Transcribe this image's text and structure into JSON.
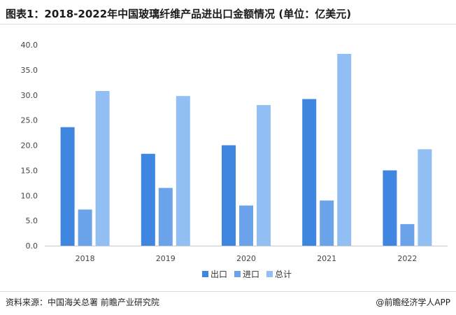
{
  "title": "图表1：2018-2022年中国玻璃纤维产品进出口金额情况 (单位：亿美元)",
  "source": "资料来源：中国海关总署 前瞻产业研究院",
  "credit": "@前瞻经济学人APP",
  "colors": {
    "出口": "#3f86e0",
    "进口": "#6aa3ea",
    "总计": "#92bff3"
  },
  "chart_data": {
    "type": "bar",
    "title": "图表1：2018-2022年中国玻璃纤维产品进出口金额情况 (单位：亿美元)",
    "categories": [
      "2018",
      "2019",
      "2020",
      "2021",
      "2022"
    ],
    "series": [
      {
        "name": "出口",
        "values": [
          23.6,
          18.3,
          20.0,
          29.2,
          15.0
        ]
      },
      {
        "name": "进口",
        "values": [
          7.2,
          11.5,
          8.0,
          9.0,
          4.3
        ]
      },
      {
        "name": "总计",
        "values": [
          30.8,
          29.8,
          28.0,
          38.2,
          19.2
        ]
      }
    ],
    "xlabel": "",
    "ylabel": "",
    "ylim": [
      0,
      40
    ],
    "yticks": [
      "0.0",
      "5.0",
      "10.0",
      "15.0",
      "20.0",
      "25.0",
      "30.0",
      "35.0",
      "40.0"
    ],
    "grid": false,
    "legend_position": "bottom"
  }
}
